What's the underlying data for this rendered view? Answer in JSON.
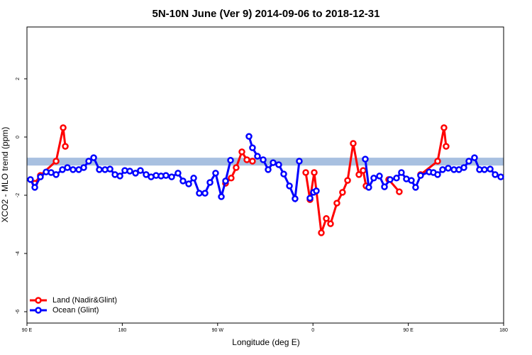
{
  "chart_data": {
    "type": "line",
    "title": "5N-10N June (Ver 9)   2014-09-06 to 2018-12-31",
    "x_label": "Longitude (deg E)",
    "y_label": "XCO2 - MLO trend (ppm)",
    "xlim": [
      90,
      540
    ],
    "ylim": [
      -6.39,
      3.78
    ],
    "xticks": [
      {
        "value": 90,
        "label": "90 E"
      },
      {
        "value": 180,
        "label": "180"
      },
      {
        "value": 270,
        "label": "90 W"
      },
      {
        "value": 360,
        "label": "0"
      },
      {
        "value": 450,
        "label": "90 E"
      },
      {
        "value": 540,
        "label": "180"
      }
    ],
    "yticks": [
      -6,
      -4,
      -2,
      0,
      2
    ],
    "band": {
      "values": [
        -0.98,
        -0.71
      ],
      "color": "#a8c0e0"
    },
    "legend": "bottom-left",
    "series": [
      {
        "name": "Land (Nadir&Glint)",
        "color": "#ff0000",
        "x": [
          97.4,
          102.7,
          117.5,
          124.2,
          126.2,
          200,
          277.5,
          282.8,
          287.5,
          292.9,
          297.6,
          302.9,
          330,
          353.2,
          357.2,
          361.2,
          367.9,
          372.6,
          376.6,
          382.6,
          387.9,
          392.7,
          398.0,
          403.4,
          407.4,
          410.1,
          420,
          431.5,
          441.5,
          450,
          461.6,
          477.7,
          483.7,
          485.7
        ],
        "values": [
          -1.59,
          -1.32,
          -0.83,
          0.32,
          -0.32,
          null,
          -1.59,
          -1.41,
          -1.05,
          -0.51,
          -0.78,
          -0.83,
          null,
          -1.22,
          -2.15,
          -1.22,
          -3.29,
          -2.8,
          -2.98,
          -2.27,
          -1.9,
          -1.49,
          -0.22,
          -1.29,
          -1.15,
          -1.68,
          null,
          -1.46,
          -1.88,
          null,
          -1.29,
          -0.83,
          0.32,
          -0.32
        ]
      },
      {
        "name": "Ocean (Glint)",
        "color": "#0000ff",
        "x": [
          93.3,
          97.4,
          102.7,
          108.1,
          112.8,
          117.5,
          123.5,
          128.2,
          133.5,
          138.9,
          143.6,
          148.3,
          153.0,
          158.3,
          163.7,
          168.4,
          173.1,
          177.8,
          182.4,
          187.1,
          192.5,
          197.1,
          202.5,
          207.2,
          211.9,
          216.6,
          221.2,
          226.6,
          232.6,
          237.3,
          242.7,
          247.4,
          252.7,
          258.1,
          262.8,
          268.1,
          273.5,
          277.5,
          282.2,
          290,
          299.6,
          302.9,
          307.6,
          313.0,
          317.7,
          322.4,
          327.7,
          332.4,
          337.8,
          343.1,
          347.1,
          352,
          357.2,
          360.5,
          363.2,
          380,
          409.4,
          412.7,
          417.4,
          422.8,
          427.5,
          432.8,
          438.9,
          443.5,
          448.2,
          452.9,
          456.9,
          461.6,
          469.7,
          473.7,
          477.7,
          482.4,
          487.7,
          493.1,
          497.8,
          502.5,
          507.2,
          512.5,
          517.2,
          521.9,
          527.3,
          532.0,
          537.3
        ],
        "values": [
          -1.46,
          -1.73,
          -1.37,
          -1.2,
          -1.22,
          -1.29,
          -1.12,
          -1.05,
          -1.12,
          -1.12,
          -1.05,
          -0.83,
          -0.71,
          -1.12,
          -1.12,
          -1.1,
          -1.29,
          -1.34,
          -1.15,
          -1.17,
          -1.24,
          -1.15,
          -1.29,
          -1.37,
          -1.32,
          -1.34,
          -1.32,
          -1.37,
          -1.24,
          -1.51,
          -1.61,
          -1.41,
          -1.93,
          -1.93,
          -1.56,
          -1.24,
          -2.05,
          -1.51,
          -0.8,
          null,
          0.02,
          -0.37,
          -0.66,
          -0.78,
          -1.12,
          -0.88,
          -0.95,
          -1.27,
          -1.68,
          -2.12,
          -0.83,
          null,
          -2.1,
          -1.9,
          -1.85,
          null,
          -0.76,
          -1.73,
          -1.41,
          -1.34,
          -1.71,
          -1.46,
          -1.41,
          -1.22,
          -1.44,
          -1.49,
          -1.73,
          -1.32,
          -1.2,
          -1.22,
          -1.29,
          -1.12,
          -1.07,
          -1.12,
          -1.12,
          -1.05,
          -0.83,
          -0.71,
          -1.12,
          -1.12,
          -1.1,
          -1.29,
          -1.37
        ]
      }
    ]
  }
}
